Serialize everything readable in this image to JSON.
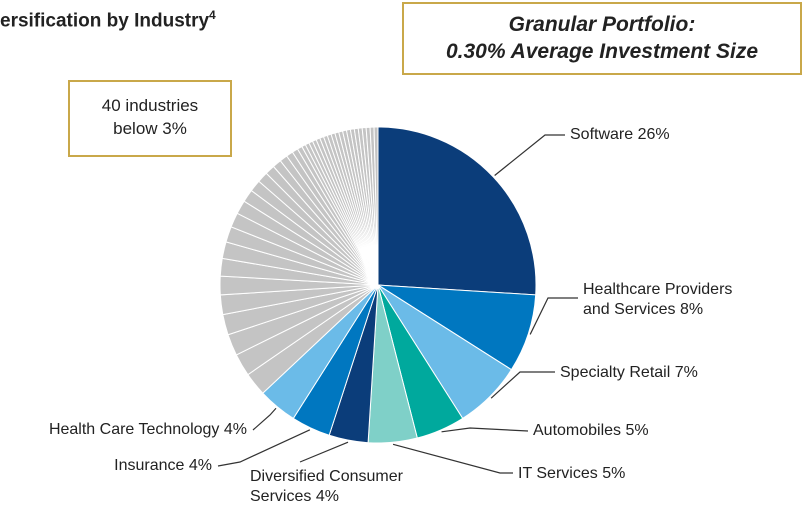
{
  "chart_data": {
    "type": "pie",
    "title": "ersification by Industry",
    "title_footnote": "4",
    "annotations": [
      {
        "lines": [
          "Granular Portfolio:",
          "0.30% Average Investment Size"
        ]
      },
      {
        "lines": [
          "40 industries",
          "below 3%"
        ]
      }
    ],
    "categories": [
      "Software",
      "Healthcare Providers and Services",
      "Specialty Retail",
      "Automobiles",
      "IT Services",
      "Diversified Consumer Services",
      "Insurance",
      "Health Care Technology",
      null,
      null,
      null,
      null,
      null,
      null,
      null,
      null,
      null,
      null,
      null,
      null,
      null,
      null,
      null,
      null,
      null,
      null,
      null,
      null,
      null,
      null,
      null,
      null,
      null,
      null,
      null,
      null,
      null,
      null,
      null,
      null,
      null,
      null,
      null,
      null,
      null,
      null,
      null,
      null
    ],
    "values": [
      26,
      8,
      7,
      5,
      5,
      4,
      4,
      4,
      2.4,
      2.3,
      2.2,
      2.1,
      2.0,
      1.9,
      1.8,
      1.7,
      1.6,
      1.5,
      1.4,
      1.3,
      1.2,
      1.1,
      1.0,
      0.9,
      0.8,
      0.7,
      0.6,
      0.5,
      0.4,
      0.4,
      0.4,
      0.4,
      0.4,
      0.4,
      0.4,
      0.4,
      0.4,
      0.4,
      0.4,
      0.4,
      0.4,
      0.4,
      0.4,
      0.4,
      0.4,
      0.4,
      0.4,
      0.4
    ],
    "value_labels": [
      "26%",
      "8%",
      "7%",
      "5%",
      "5%",
      "4%",
      "4%",
      "4%",
      null,
      null,
      null,
      null,
      null,
      null,
      null,
      null,
      null,
      null,
      null,
      null,
      null,
      null,
      null,
      null,
      null,
      null,
      null,
      null,
      null,
      null,
      null,
      null,
      null,
      null,
      null,
      null,
      null,
      null,
      null,
      null,
      null,
      null,
      null,
      null,
      null,
      null,
      null,
      null
    ],
    "colors": [
      "#0b3d7a",
      "#0077c0",
      "#6bbbe8",
      "#00a99d",
      "#7fd0c8",
      "#0b3d7a",
      "#0077c0",
      "#6bbbe8"
    ],
    "other_color": "#c4c4c4"
  }
}
